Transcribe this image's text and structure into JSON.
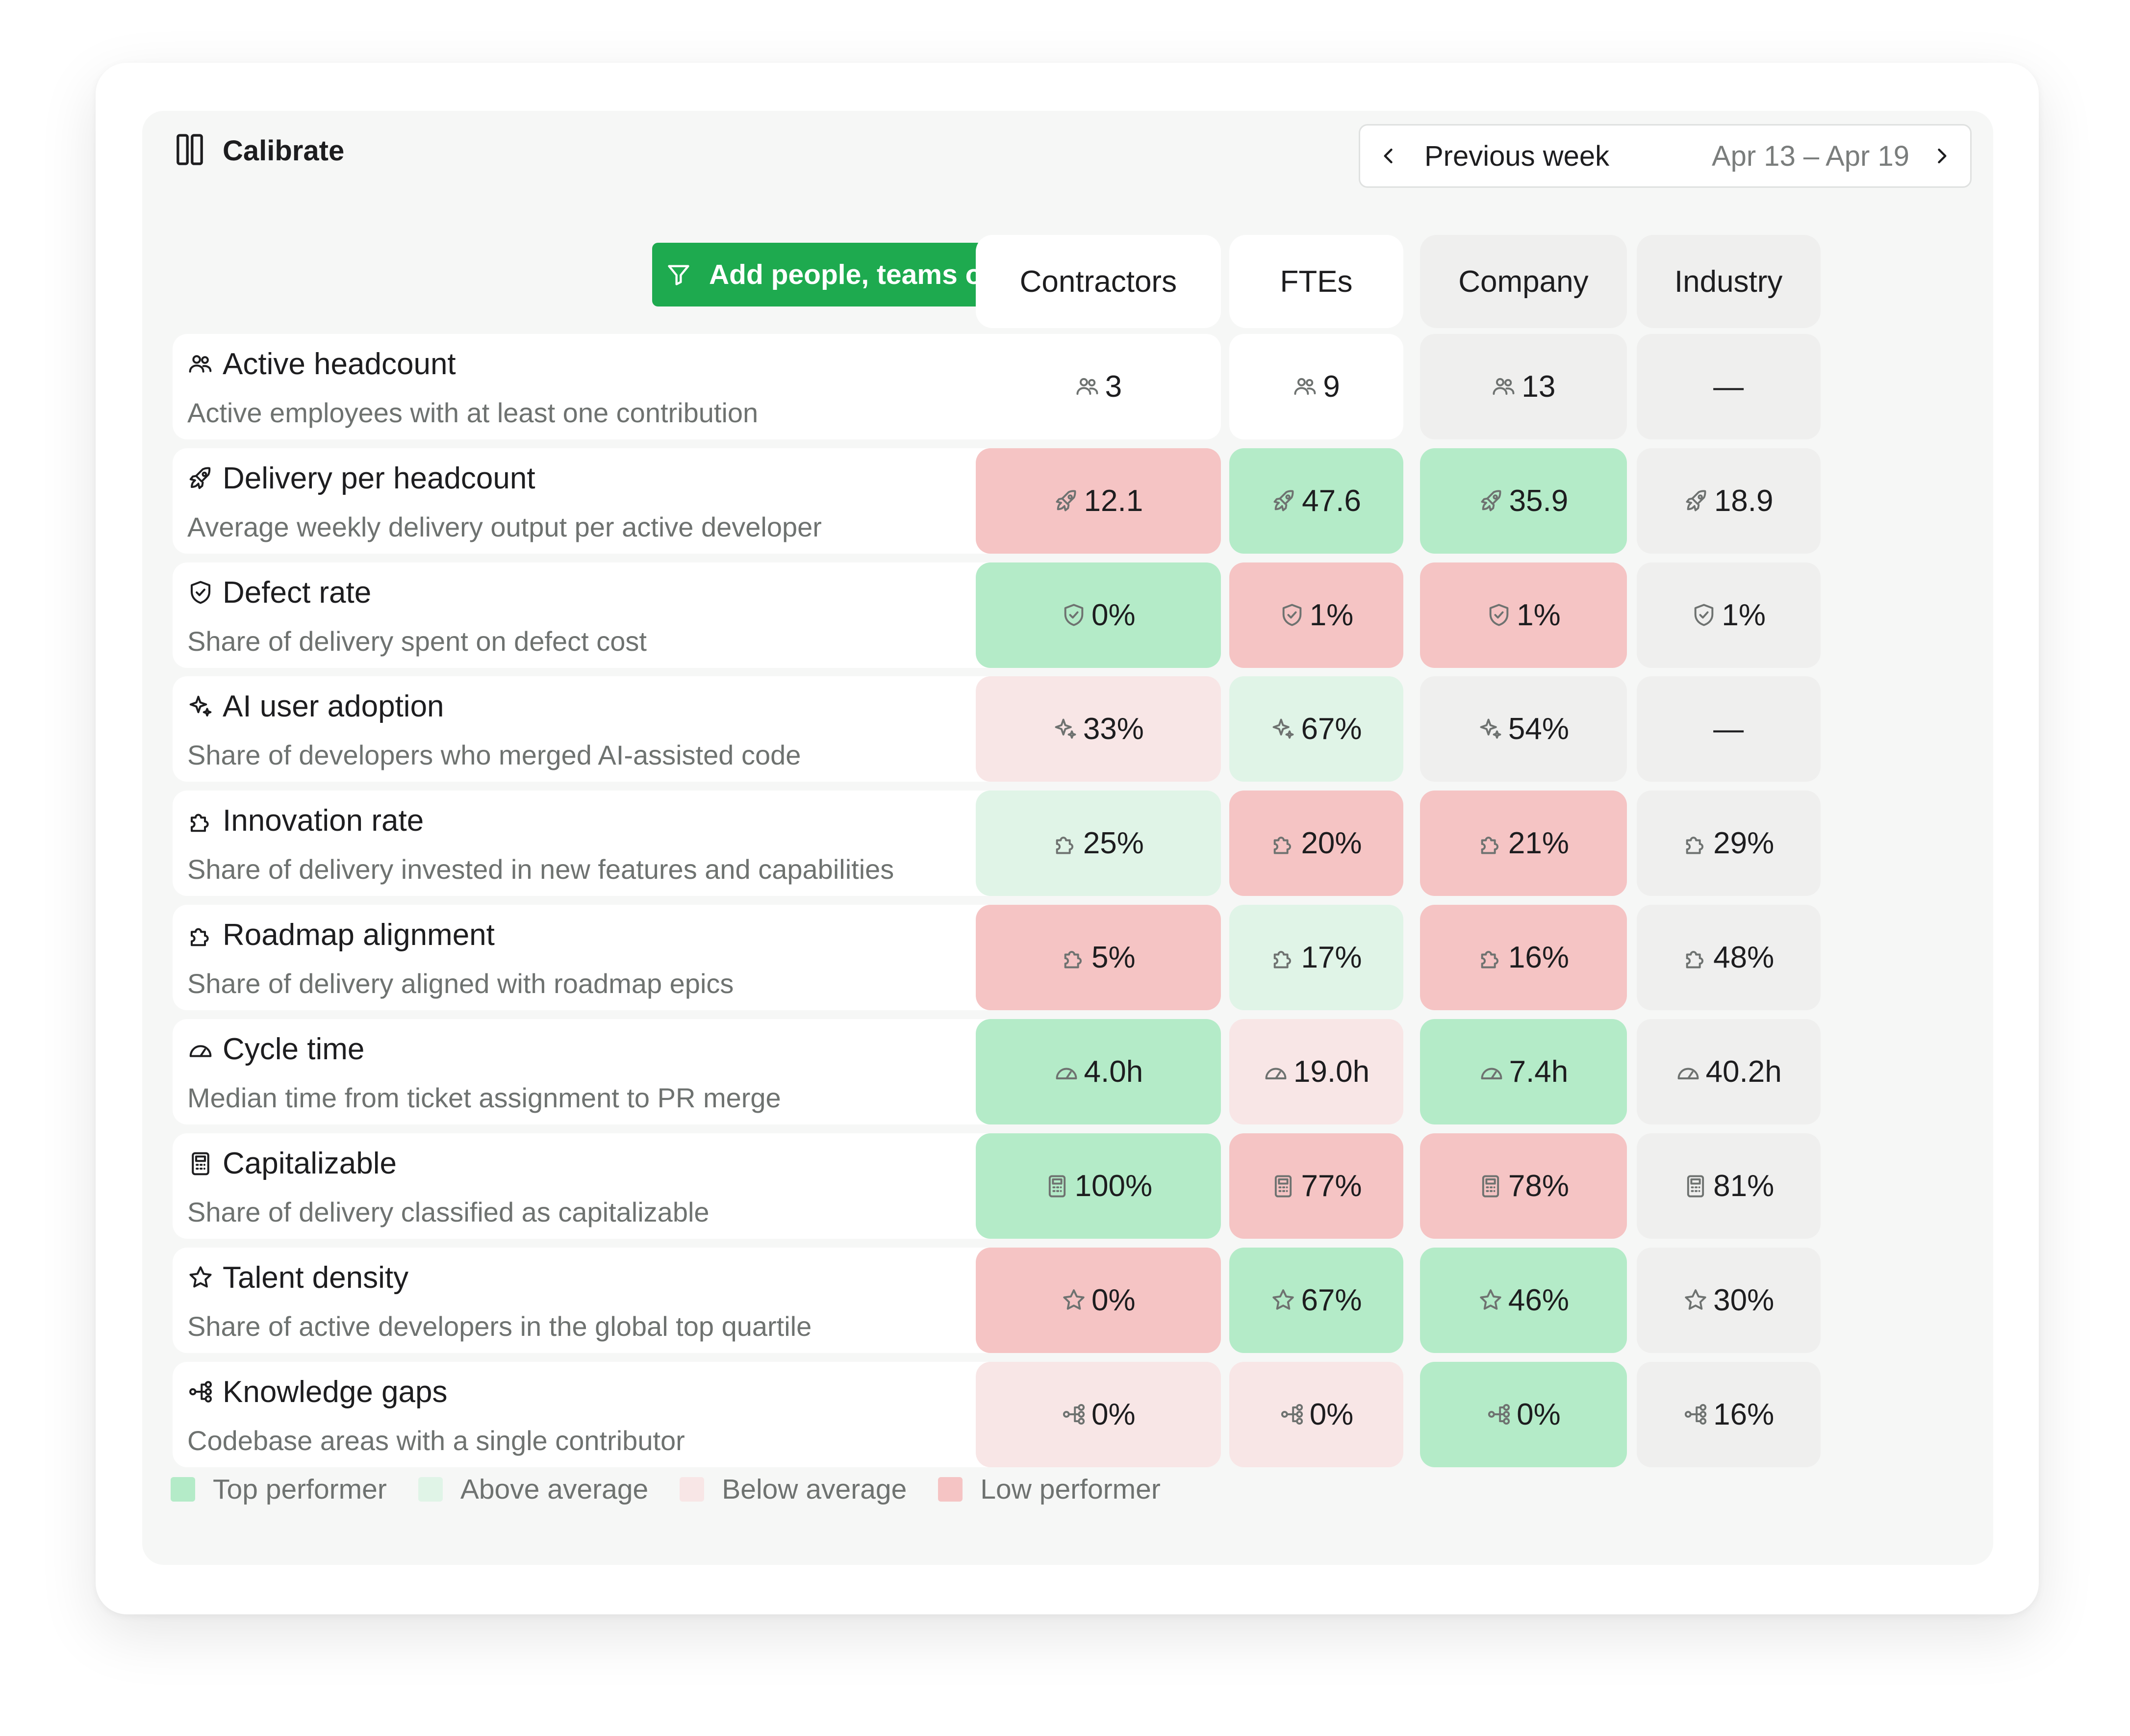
{
  "app": {
    "title": "Calibrate"
  },
  "week": {
    "label": "Previous week",
    "range": "Apr 13 – Apr 19"
  },
  "filter": {
    "label": "Add people, teams or cohorts"
  },
  "columns": [
    "Contractors",
    "FTEs",
    "Company",
    "Industry"
  ],
  "colors": {
    "accent": "#1eaa4f",
    "top": "#b4ebc8",
    "above": "#e0f4e7",
    "below": "#f8e6e6",
    "low": "#f5c4c4",
    "neutral": "#efefee",
    "plain": "#ffffff"
  },
  "metrics": [
    {
      "icon": "people-icon",
      "title": "Active headcount",
      "desc": "Active employees with at least one contribution",
      "values": [
        "3",
        "9",
        "13",
        "—"
      ],
      "status": [
        "plain",
        "plain",
        "neutral",
        "neutral"
      ]
    },
    {
      "icon": "rocket-icon",
      "title": "Delivery per headcount",
      "desc": "Average weekly delivery output per active developer",
      "values": [
        "12.1",
        "47.6",
        "35.9",
        "18.9"
      ],
      "status": [
        "low",
        "top",
        "top",
        "neutral"
      ]
    },
    {
      "icon": "shield-icon",
      "title": "Defect rate",
      "desc": "Share of delivery spent on defect cost",
      "values": [
        "0%",
        "1%",
        "1%",
        "1%"
      ],
      "status": [
        "top",
        "low",
        "low",
        "neutral"
      ]
    },
    {
      "icon": "sparkle-icon",
      "title": "AI user adoption",
      "desc": "Share of developers who merged AI-assisted code",
      "values": [
        "33%",
        "67%",
        "54%",
        "—"
      ],
      "status": [
        "below",
        "above",
        "neutral",
        "neutral"
      ]
    },
    {
      "icon": "puzzle-icon",
      "title": "Innovation rate",
      "desc": "Share of delivery invested in new features and capabilities",
      "values": [
        "25%",
        "20%",
        "21%",
        "29%"
      ],
      "status": [
        "above",
        "low",
        "low",
        "neutral"
      ]
    },
    {
      "icon": "puzzle-icon",
      "title": "Roadmap alignment",
      "desc": "Share of delivery aligned with roadmap epics",
      "values": [
        "5%",
        "17%",
        "16%",
        "48%"
      ],
      "status": [
        "low",
        "above",
        "low",
        "neutral"
      ]
    },
    {
      "icon": "gauge-icon",
      "title": "Cycle time",
      "desc": "Median time from ticket assignment to PR merge",
      "values": [
        "4.0h",
        "19.0h",
        "7.4h",
        "40.2h"
      ],
      "status": [
        "top",
        "below",
        "top",
        "neutral"
      ]
    },
    {
      "icon": "calculator-icon",
      "title": "Capitalizable",
      "desc": "Share of delivery classified as capitalizable",
      "values": [
        "100%",
        "77%",
        "78%",
        "81%"
      ],
      "status": [
        "top",
        "low",
        "low",
        "neutral"
      ]
    },
    {
      "icon": "star-icon",
      "title": "Talent density",
      "desc": "Share of active developers in the global top quartile",
      "values": [
        "0%",
        "67%",
        "46%",
        "30%"
      ],
      "status": [
        "low",
        "top",
        "top",
        "neutral"
      ]
    },
    {
      "icon": "network-icon",
      "title": "Knowledge gaps",
      "desc": "Codebase areas with a single contributor",
      "values": [
        "0%",
        "0%",
        "0%",
        "16%"
      ],
      "status": [
        "below",
        "below",
        "top",
        "neutral"
      ]
    }
  ],
  "legend": [
    {
      "label": "Top performer",
      "status": "top"
    },
    {
      "label": "Above average",
      "status": "above"
    },
    {
      "label": "Below average",
      "status": "below"
    },
    {
      "label": "Low performer",
      "status": "low"
    }
  ]
}
